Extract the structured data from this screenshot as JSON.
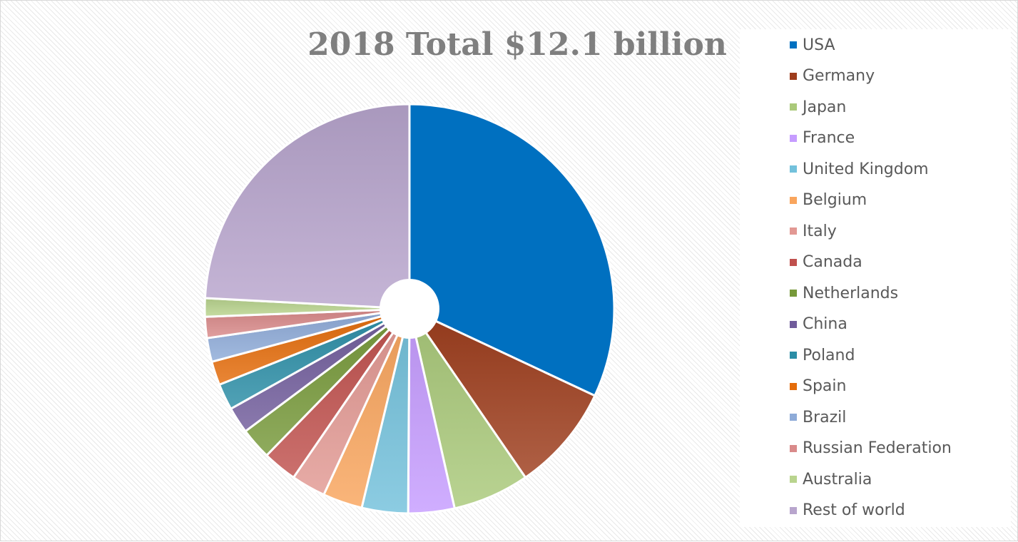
{
  "chart_data": {
    "type": "pie",
    "title": "2018 Total $12.1 billion",
    "legend_position": "right",
    "categories": [
      "USA",
      "Germany",
      "Japan",
      "France",
      "United Kingdom",
      "Belgium",
      "Italy",
      "Canada",
      "Netherlands",
      "China",
      "Poland",
      "Spain",
      "Brazil",
      "Russian Federation",
      "Australia",
      "Rest of world"
    ],
    "values": [
      30.7,
      8.1,
      5.8,
      3.5,
      3.5,
      3.0,
      2.6,
      2.6,
      2.4,
      2.0,
      2.0,
      1.8,
      1.8,
      1.6,
      1.4,
      23.2
    ],
    "colors": [
      "#0070c0",
      "#9e3d1c",
      "#aac97a",
      "#c69cff",
      "#73c1dc",
      "#f9a55d",
      "#e29893",
      "#c0504d",
      "#77993a",
      "#705c9b",
      "#2b8da6",
      "#e46c0a",
      "#8eabd8",
      "#d98a8a",
      "#b9d48e",
      "#b8a5cd"
    ]
  }
}
